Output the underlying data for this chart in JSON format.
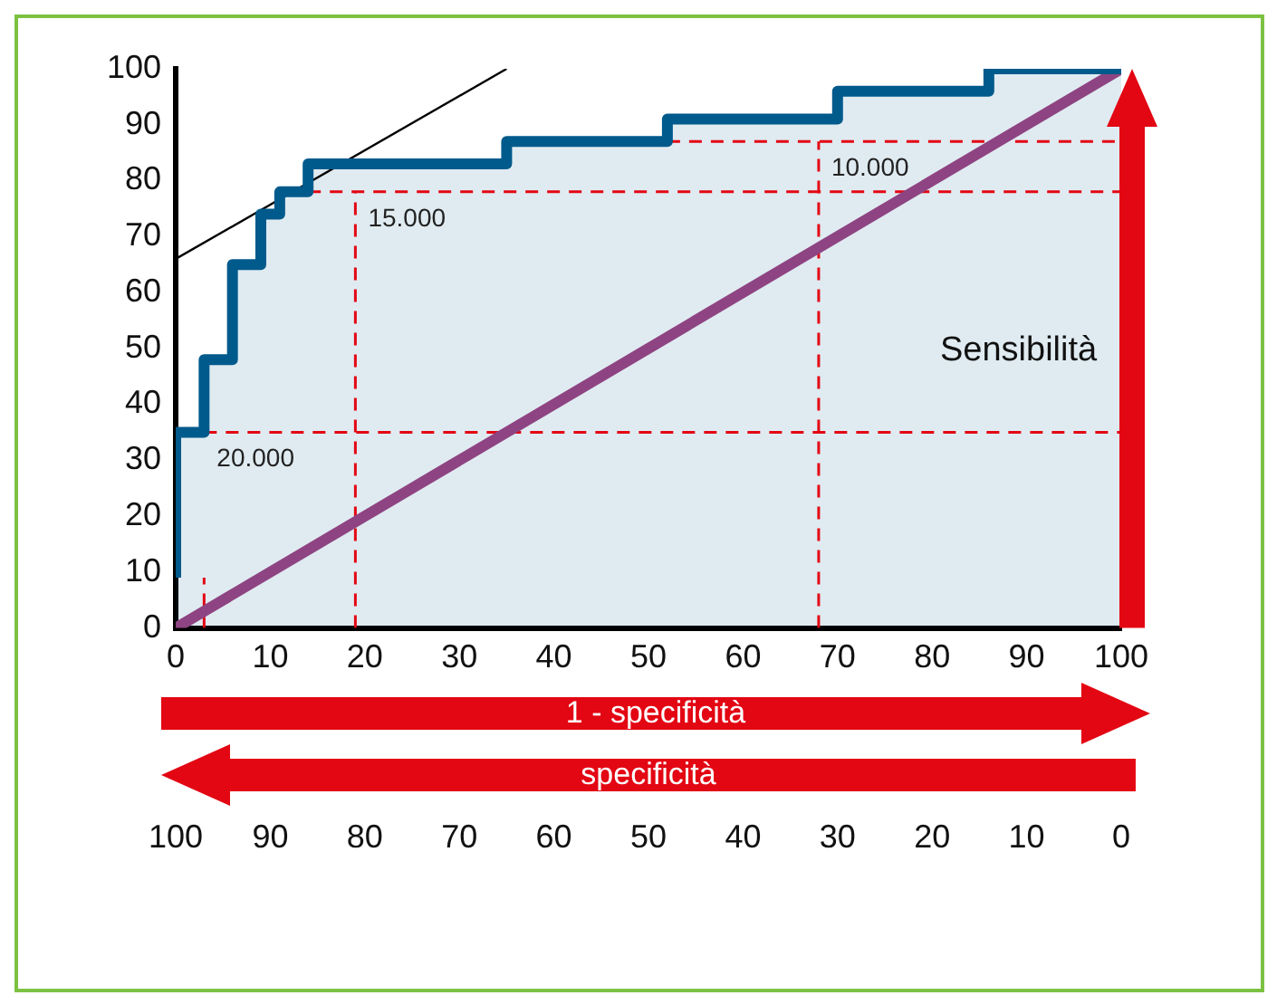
{
  "chart_data": {
    "type": "step",
    "xlabel": "1 - specificità",
    "ylabel": "Sensibilità",
    "x2label": "specificità",
    "xlim": [
      0,
      100
    ],
    "xticks": [
      0,
      10,
      20,
      30,
      40,
      50,
      60,
      70,
      80,
      90,
      100
    ],
    "ylim": [
      0,
      100
    ],
    "yticks": [
      0,
      10,
      20,
      30,
      40,
      50,
      60,
      70,
      80,
      90,
      100
    ],
    "x2lim": [
      100,
      0
    ],
    "x2ticks": [
      100,
      90,
      80,
      70,
      60,
      50,
      40,
      30,
      20,
      10,
      0
    ],
    "grid": false,
    "marker": "none",
    "series": [
      {
        "color": "#005a8c",
        "x": [
          0,
          3,
          6,
          9,
          11,
          14,
          35,
          52,
          70,
          86,
          89,
          100
        ],
        "values": [
          9,
          35,
          48,
          65,
          74,
          78,
          83,
          87,
          91,
          96,
          100,
          100
        ]
      },
      {
        "type": "line",
        "color": "#8e4482",
        "x": [
          0,
          100
        ],
        "values": [
          0,
          100
        ]
      },
      {
        "type": "line",
        "color": "#000000",
        "x": [
          0,
          35
        ],
        "values": [
          66,
          100
        ]
      }
    ],
    "ref_lines": [
      {
        "axis": "y",
        "value": 35,
        "color": "#e30613",
        "line_style": "dashed"
      },
      {
        "axis": "y",
        "value": 78,
        "color": "#e30613",
        "line_style": "dashed"
      },
      {
        "axis": "y",
        "value": 87,
        "color": "#e30613",
        "line_style": "dashed"
      },
      {
        "axis": "x",
        "value": 3,
        "color": "#e30613",
        "line_style": "dashed"
      },
      {
        "axis": "x",
        "value": 19,
        "color": "#e30613",
        "line_style": "dashed"
      },
      {
        "axis": "x",
        "value": 68,
        "color": "#e30613",
        "line_style": "dashed"
      }
    ],
    "annotations": [
      {
        "text": "20.000",
        "x": 3,
        "y": 35
      },
      {
        "text": "15.000",
        "x": 19,
        "y": 78
      },
      {
        "text": "10.000",
        "x": 68,
        "y": 87
      }
    ]
  }
}
